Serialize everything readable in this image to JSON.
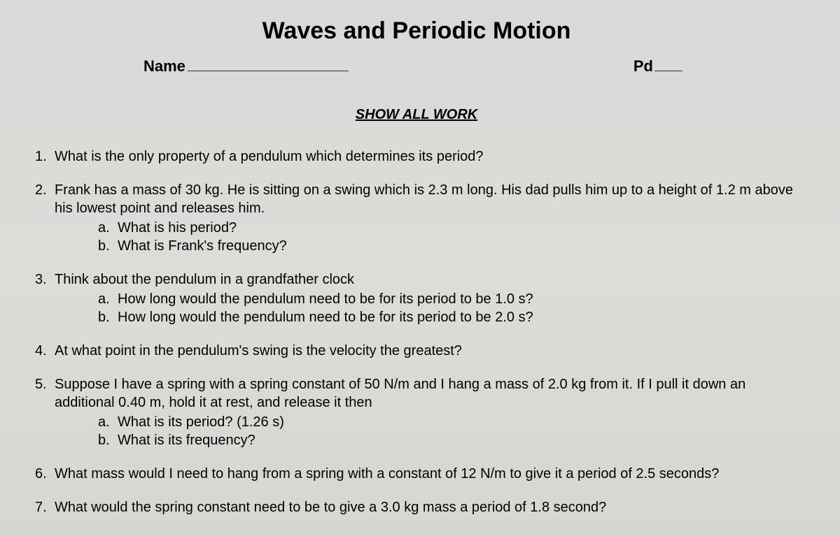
{
  "title": "Waves and Periodic Motion",
  "labels": {
    "name": "Name",
    "pd": "Pd"
  },
  "instruction": "SHOW ALL WORK",
  "questions": [
    {
      "num": "1.",
      "text": "What is the only property of a pendulum which determines its period?",
      "subs": []
    },
    {
      "num": "2.",
      "text": "Frank has a mass of 30 kg.  He is sitting on a swing which is 2.3 m long.  His dad pulls him up to a height of 1.2 m above his lowest point and releases him.",
      "subs": [
        {
          "letter": "a.",
          "text": "What is his period?"
        },
        {
          "letter": "b.",
          "text": "What is Frank's frequency?"
        }
      ]
    },
    {
      "num": "3.",
      "text": "Think about the pendulum in a grandfather clock",
      "subs": [
        {
          "letter": "a.",
          "text": "How long would the pendulum need to be for its period to be 1.0 s?"
        },
        {
          "letter": "b.",
          "text": "How long would the pendulum need to be for its period to be 2.0 s?"
        }
      ]
    },
    {
      "num": "4.",
      "text": "At what point in the pendulum's swing is the velocity the greatest?",
      "subs": []
    },
    {
      "num": "5.",
      "text": "Suppose I have a spring with a spring constant of 50 N/m and I hang a mass of 2.0 kg from it.  If I pull it down an additional 0.40 m, hold it at rest, and release it then",
      "subs": [
        {
          "letter": "a.",
          "text": "What is its period?  (1.26 s)"
        },
        {
          "letter": "b.",
          "text": "What is its frequency?"
        }
      ]
    },
    {
      "num": "6.",
      "text": "What mass would I need to hang from a spring with a constant of 12 N/m to give it a period of 2.5 seconds?",
      "subs": []
    },
    {
      "num": "7.",
      "text": "What would the spring constant need to be to give a 3.0 kg mass a period of 1.8 second?",
      "subs": []
    }
  ]
}
